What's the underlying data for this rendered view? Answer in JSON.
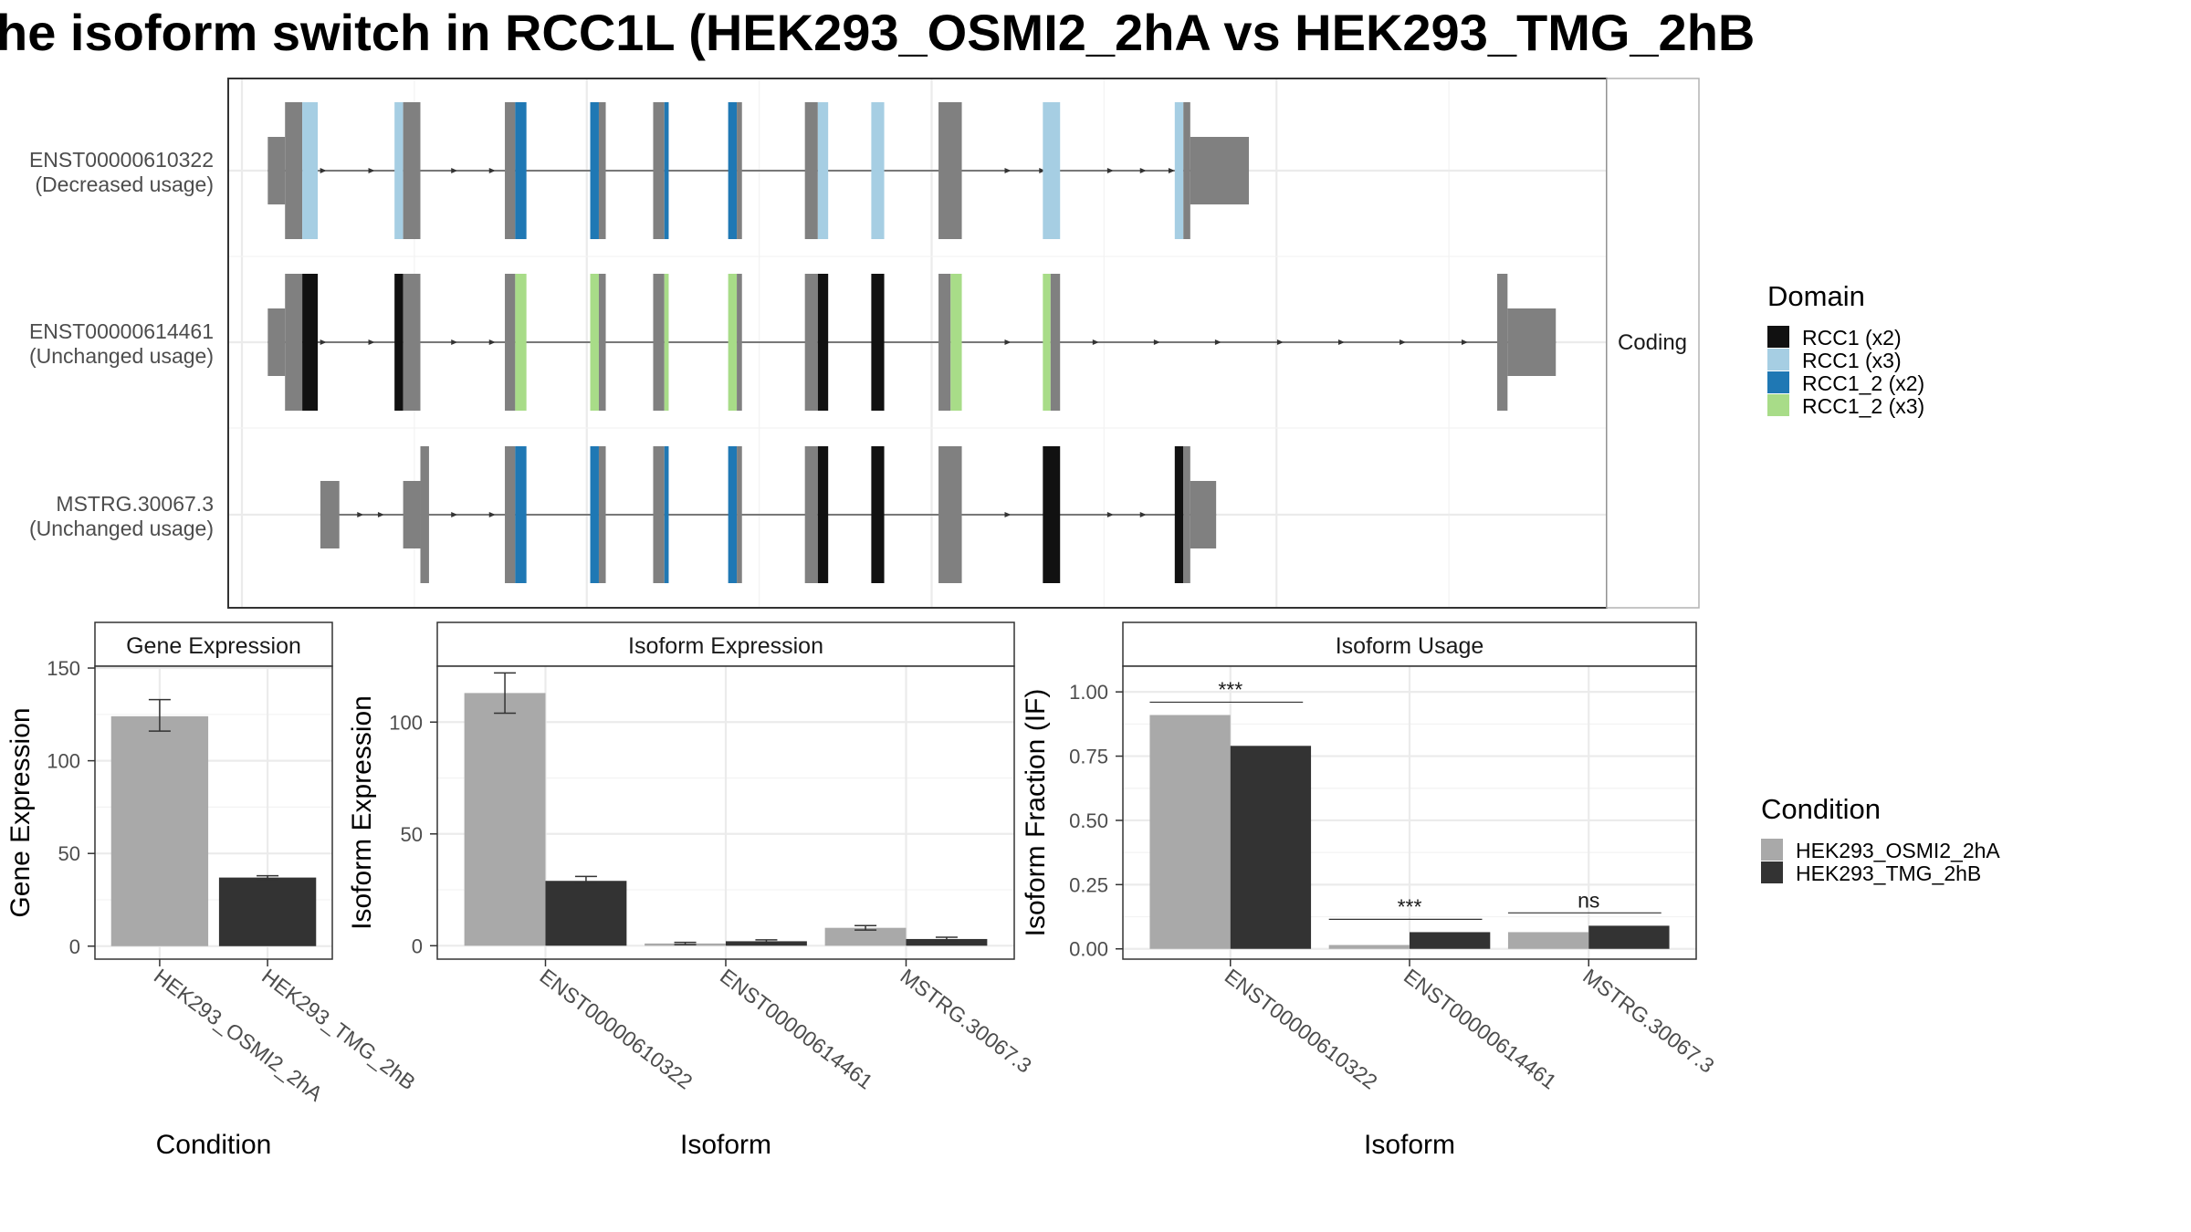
{
  "title": "he isoform switch in RCC1L (HEK293_OSMI2_2hA vs HEK293_TMG_2hB",
  "colors": {
    "exon_grey": "#808080",
    "rcc1_x2": "#111111",
    "rcc1_x3": "#a6cee3",
    "rcc1_2_x2": "#1f78b4",
    "rcc1_2_x3": "#a8dc88",
    "cond_a": "#a9a9a9",
    "cond_b": "#333333",
    "panel_border": "#333333",
    "grid": "#ebebeb",
    "strip_fill": "#ffffff"
  },
  "chart_data": [
    {
      "type": "gene-structure",
      "strip_label": "Coding",
      "isoforms": [
        {
          "id": "ENST00000610322",
          "usage_note": "(Decreased usage)",
          "exons": [
            {
              "start": 0.03,
              "end": 0.05,
              "kind": "utr"
            },
            {
              "start": 0.05,
              "end": 0.07,
              "kind": "cds"
            },
            {
              "start": 0.07,
              "end": 0.088,
              "kind": "cds",
              "domain": "rcc1_x3"
            },
            {
              "start": 0.177,
              "end": 0.187,
              "kind": "cds",
              "domain": "rcc1_x3"
            },
            {
              "start": 0.187,
              "end": 0.207,
              "kind": "cds"
            },
            {
              "start": 0.305,
              "end": 0.317,
              "kind": "cds"
            },
            {
              "start": 0.317,
              "end": 0.33,
              "kind": "cds",
              "domain": "rcc1_2_x2"
            },
            {
              "start": 0.404,
              "end": 0.414,
              "kind": "cds",
              "domain": "rcc1_2_x2"
            },
            {
              "start": 0.414,
              "end": 0.422,
              "kind": "cds"
            },
            {
              "start": 0.477,
              "end": 0.49,
              "kind": "cds"
            },
            {
              "start": 0.49,
              "end": 0.495,
              "kind": "cds",
              "domain": "rcc1_2_x2"
            },
            {
              "start": 0.564,
              "end": 0.574,
              "kind": "cds",
              "domain": "rcc1_2_x2"
            },
            {
              "start": 0.574,
              "end": 0.58,
              "kind": "cds"
            },
            {
              "start": 0.653,
              "end": 0.668,
              "kind": "cds"
            },
            {
              "start": 0.668,
              "end": 0.68,
              "kind": "cds",
              "domain": "rcc1_x3"
            },
            {
              "start": 0.73,
              "end": 0.745,
              "kind": "cds",
              "domain": "rcc1_x3"
            },
            {
              "start": 0.808,
              "end": 0.835,
              "kind": "cds"
            },
            {
              "start": 0.929,
              "end": 0.949,
              "kind": "cds",
              "domain": "rcc1_x3"
            },
            {
              "start": 1.082,
              "end": 1.092,
              "kind": "cds",
              "domain": "rcc1_x3"
            },
            {
              "start": 1.092,
              "end": 1.1,
              "kind": "cds"
            },
            {
              "start": 1.1,
              "end": 1.168,
              "kind": "utr"
            }
          ],
          "arrows": [
            0.096,
            0.152,
            0.248,
            0.292,
            0.675,
            0.89,
            0.93,
            1.009,
            1.047,
            1.08
          ]
        },
        {
          "id": "ENST00000614461",
          "usage_note": "(Unchanged usage)",
          "exons": [
            {
              "start": 0.03,
              "end": 0.05,
              "kind": "utr"
            },
            {
              "start": 0.05,
              "end": 0.07,
              "kind": "cds"
            },
            {
              "start": 0.07,
              "end": 0.088,
              "kind": "cds",
              "domain": "rcc1_x2"
            },
            {
              "start": 0.177,
              "end": 0.187,
              "kind": "cds",
              "domain": "rcc1_x2"
            },
            {
              "start": 0.187,
              "end": 0.207,
              "kind": "cds"
            },
            {
              "start": 0.305,
              "end": 0.317,
              "kind": "cds"
            },
            {
              "start": 0.317,
              "end": 0.33,
              "kind": "cds",
              "domain": "rcc1_2_x3"
            },
            {
              "start": 0.404,
              "end": 0.414,
              "kind": "cds",
              "domain": "rcc1_2_x3"
            },
            {
              "start": 0.414,
              "end": 0.422,
              "kind": "cds"
            },
            {
              "start": 0.477,
              "end": 0.49,
              "kind": "cds"
            },
            {
              "start": 0.49,
              "end": 0.495,
              "kind": "cds",
              "domain": "rcc1_2_x3"
            },
            {
              "start": 0.564,
              "end": 0.574,
              "kind": "cds",
              "domain": "rcc1_2_x3"
            },
            {
              "start": 0.574,
              "end": 0.58,
              "kind": "cds"
            },
            {
              "start": 0.653,
              "end": 0.668,
              "kind": "cds"
            },
            {
              "start": 0.668,
              "end": 0.68,
              "kind": "cds",
              "domain": "rcc1_x2"
            },
            {
              "start": 0.73,
              "end": 0.745,
              "kind": "cds",
              "domain": "rcc1_x2"
            },
            {
              "start": 0.808,
              "end": 0.822,
              "kind": "cds"
            },
            {
              "start": 0.822,
              "end": 0.835,
              "kind": "cds",
              "domain": "rcc1_2_x3"
            },
            {
              "start": 0.929,
              "end": 0.938,
              "kind": "cds",
              "domain": "rcc1_2_x3"
            },
            {
              "start": 0.938,
              "end": 0.949,
              "kind": "cds"
            },
            {
              "start": 1.456,
              "end": 1.468,
              "kind": "cds"
            },
            {
              "start": 1.468,
              "end": 1.524,
              "kind": "utr"
            }
          ],
          "arrows": [
            0.096,
            0.152,
            0.248,
            0.292,
            0.675,
            0.89,
            0.992,
            1.063,
            1.134,
            1.206,
            1.277,
            1.348,
            1.42
          ]
        },
        {
          "id": "MSTRG.30067.3",
          "usage_note": "(Unchanged usage)",
          "exons": [
            {
              "start": 0.091,
              "end": 0.113,
              "kind": "utr"
            },
            {
              "start": 0.187,
              "end": 0.207,
              "kind": "utr"
            },
            {
              "start": 0.207,
              "end": 0.217,
              "kind": "cds"
            },
            {
              "start": 0.305,
              "end": 0.317,
              "kind": "cds"
            },
            {
              "start": 0.317,
              "end": 0.33,
              "kind": "cds",
              "domain": "rcc1_2_x2"
            },
            {
              "start": 0.404,
              "end": 0.414,
              "kind": "cds",
              "domain": "rcc1_2_x2"
            },
            {
              "start": 0.414,
              "end": 0.422,
              "kind": "cds"
            },
            {
              "start": 0.477,
              "end": 0.49,
              "kind": "cds"
            },
            {
              "start": 0.49,
              "end": 0.495,
              "kind": "cds",
              "domain": "rcc1_2_x2"
            },
            {
              "start": 0.564,
              "end": 0.574,
              "kind": "cds",
              "domain": "rcc1_2_x2"
            },
            {
              "start": 0.574,
              "end": 0.58,
              "kind": "cds"
            },
            {
              "start": 0.653,
              "end": 0.668,
              "kind": "cds"
            },
            {
              "start": 0.668,
              "end": 0.68,
              "kind": "cds",
              "domain": "rcc1_x2"
            },
            {
              "start": 0.73,
              "end": 0.745,
              "kind": "cds",
              "domain": "rcc1_x2"
            },
            {
              "start": 0.808,
              "end": 0.835,
              "kind": "cds"
            },
            {
              "start": 0.929,
              "end": 0.949,
              "kind": "cds",
              "domain": "rcc1_x2"
            },
            {
              "start": 1.082,
              "end": 1.092,
              "kind": "cds",
              "domain": "rcc1_x2"
            },
            {
              "start": 1.092,
              "end": 1.1,
              "kind": "cds"
            },
            {
              "start": 1.1,
              "end": 1.13,
              "kind": "utr"
            }
          ],
          "arrows": [
            0.139,
            0.163,
            0.248,
            0.292,
            0.675,
            0.89,
            1.009,
            1.047
          ]
        }
      ]
    },
    {
      "type": "bar",
      "panel_title": "Gene Expression",
      "xlabel": "Condition",
      "ylabel": "Gene Expression",
      "ylim": [
        -7,
        151
      ],
      "yticks": [
        "0",
        "50",
        "100",
        "150"
      ],
      "categories": [
        "HEK293_OSMI2_2hA",
        "HEK293_TMG_2hB"
      ],
      "values": [
        124,
        37
      ],
      "errors": [
        [
          116,
          133
        ],
        [
          36,
          38
        ]
      ]
    },
    {
      "type": "bar",
      "panel_title": "Isoform Expression",
      "xlabel": "Isoform",
      "ylabel": "Isoform Expression",
      "ylim": [
        -6,
        125
      ],
      "yticks": [
        "0",
        "50",
        "100"
      ],
      "categories": [
        "ENST00000610322",
        "ENST00000614461",
        "MSTRG.30067.3"
      ],
      "series": [
        {
          "name": "HEK293_OSMI2_2hA",
          "values": [
            113,
            1,
            8
          ],
          "errors": [
            [
              104,
              122
            ],
            [
              0.5,
              1.5
            ],
            [
              7,
              9
            ]
          ]
        },
        {
          "name": "HEK293_TMG_2hB",
          "values": [
            29,
            2,
            3
          ],
          "errors": [
            [
              28,
              31
            ],
            [
              1.6,
              2.6
            ],
            [
              2.2,
              3.8
            ]
          ]
        }
      ]
    },
    {
      "type": "bar",
      "panel_title": "Isoform Usage",
      "xlabel": "Isoform",
      "ylabel": "Isoform Fraction (IF)",
      "ylim": [
        -0.04,
        1.1
      ],
      "yticks": [
        "0.00",
        "0.25",
        "0.50",
        "0.75",
        "1.00"
      ],
      "categories": [
        "ENST00000610322",
        "ENST00000614461",
        "MSTRG.30067.3"
      ],
      "series": [
        {
          "name": "HEK293_OSMI2_2hA",
          "values": [
            0.91,
            0.015,
            0.065
          ]
        },
        {
          "name": "HEK293_TMG_2hB",
          "values": [
            0.79,
            0.065,
            0.09
          ]
        }
      ],
      "annotations": [
        {
          "category": 0,
          "text": "***",
          "y": 0.96
        },
        {
          "category": 1,
          "text": "***",
          "y": 0.115
        },
        {
          "category": 2,
          "text": "ns",
          "y": 0.14
        }
      ]
    }
  ],
  "legends": {
    "domain": {
      "title": "Domain",
      "items": [
        {
          "label": "RCC1 (x2)",
          "color": "#111111"
        },
        {
          "label": "RCC1 (x3)",
          "color": "#a6cee3"
        },
        {
          "label": "RCC1_2 (x2)",
          "color": "#1f78b4"
        },
        {
          "label": "RCC1_2 (x3)",
          "color": "#a8dc88"
        }
      ]
    },
    "condition": {
      "title": "Condition",
      "items": [
        {
          "label": "HEK293_OSMI2_2hA",
          "color": "#a9a9a9"
        },
        {
          "label": "HEK293_TMG_2hB",
          "color": "#333333"
        }
      ]
    }
  }
}
